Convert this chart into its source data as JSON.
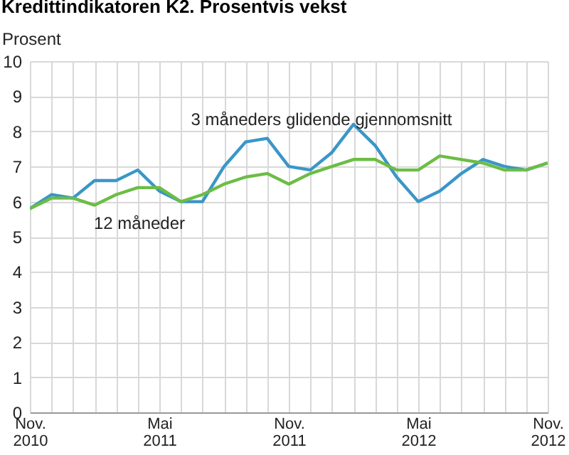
{
  "chart_data": {
    "type": "line",
    "title": "Kredittindikatoren K2. Prosentvis vekst",
    "ylabel": "Prosent",
    "x": [
      "2010-11",
      "2010-12",
      "2011-01",
      "2011-02",
      "2011-03",
      "2011-04",
      "2011-05",
      "2011-06",
      "2011-07",
      "2011-08",
      "2011-09",
      "2011-10",
      "2011-11",
      "2011-12",
      "2012-01",
      "2012-02",
      "2012-03",
      "2012-04",
      "2012-05",
      "2012-06",
      "2012-07",
      "2012-08",
      "2012-09",
      "2012-10",
      "2012-11"
    ],
    "series": [
      {
        "name": "3 måneders glidende gjennomsnitt",
        "color": "#3a96c8",
        "values": [
          5.8,
          6.2,
          6.1,
          6.6,
          6.6,
          6.9,
          6.3,
          6.0,
          6.0,
          7.0,
          7.7,
          7.8,
          7.0,
          6.9,
          7.4,
          8.2,
          7.6,
          6.7,
          6.0,
          6.3,
          6.8,
          7.2,
          7.0,
          6.9,
          7.1
        ]
      },
      {
        "name": "12 måneder",
        "color": "#6cbd45",
        "values": [
          5.8,
          6.1,
          6.1,
          5.9,
          6.2,
          6.4,
          6.4,
          6.0,
          6.2,
          6.5,
          6.7,
          6.8,
          6.5,
          6.8,
          7.0,
          7.2,
          7.2,
          6.9,
          6.9,
          7.3,
          7.2,
          7.1,
          6.9,
          6.9,
          7.1
        ]
      }
    ],
    "xlim": [
      "2010-11",
      "2012-11"
    ],
    "xticks": [
      {
        "value": "2010-11",
        "label": "Nov. 2010"
      },
      {
        "value": "2010-12",
        "label": null
      },
      {
        "value": "2011-01",
        "label": null
      },
      {
        "value": "2011-02",
        "label": null
      },
      {
        "value": "2011-03",
        "label": null
      },
      {
        "value": "2011-04",
        "label": null
      },
      {
        "value": "2011-05",
        "label": "Mai 2011"
      },
      {
        "value": "2011-06",
        "label": null
      },
      {
        "value": "2011-07",
        "label": null
      },
      {
        "value": "2011-08",
        "label": null
      },
      {
        "value": "2011-09",
        "label": null
      },
      {
        "value": "2011-10",
        "label": null
      },
      {
        "value": "2011-11",
        "label": "Nov. 2011"
      },
      {
        "value": "2011-12",
        "label": null
      },
      {
        "value": "2012-01",
        "label": null
      },
      {
        "value": "2012-02",
        "label": null
      },
      {
        "value": "2012-03",
        "label": null
      },
      {
        "value": "2012-04",
        "label": null
      },
      {
        "value": "2012-05",
        "label": "Mai 2012"
      },
      {
        "value": "2012-06",
        "label": null
      },
      {
        "value": "2012-07",
        "label": null
      },
      {
        "value": "2012-08",
        "label": null
      },
      {
        "value": "2012-09",
        "label": null
      },
      {
        "value": "2012-10",
        "label": null
      },
      {
        "value": "2012-11",
        "label": "Nov. 2012"
      }
    ],
    "ylim": [
      0,
      10
    ],
    "yticks": [
      0,
      1,
      2,
      3,
      4,
      5,
      6,
      7,
      8,
      9,
      10
    ],
    "grid": true,
    "legend": false,
    "marker": "none",
    "line_style": "solid"
  }
}
